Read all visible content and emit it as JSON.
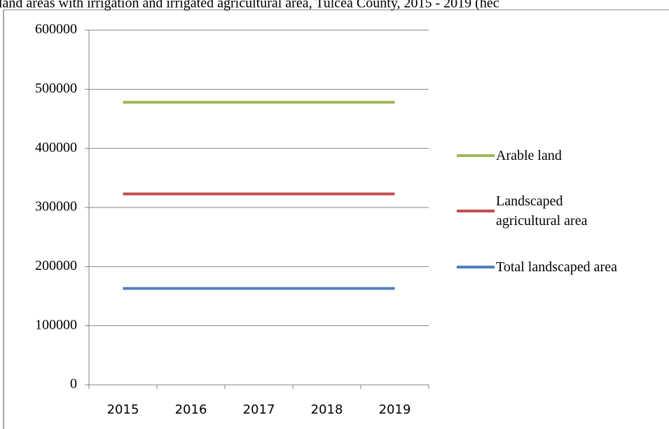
{
  "chart_data": {
    "type": "line",
    "title": "land areas with irrigation and irrigated agricultural area, Tulcea County, 2015 - 2019 (hec",
    "categories": [
      "2015",
      "2016",
      "2017",
      "2018",
      "2019"
    ],
    "series": [
      {
        "name": "Arable land",
        "color": "#9bbb59",
        "values": [
          478000,
          478000,
          478000,
          478000,
          478000
        ]
      },
      {
        "name": "Landscaped agricultural area",
        "color": "#c0504d",
        "values": [
          323000,
          323000,
          323000,
          323000,
          323000
        ]
      },
      {
        "name": "Total landscaped area",
        "color": "#4f81bd",
        "values": [
          163000,
          163000,
          163000,
          163000,
          163000
        ]
      }
    ],
    "ylim": [
      0,
      600000
    ],
    "yticks": [
      0,
      100000,
      200000,
      300000,
      400000,
      500000,
      600000
    ],
    "grid": true,
    "legend": "right"
  }
}
